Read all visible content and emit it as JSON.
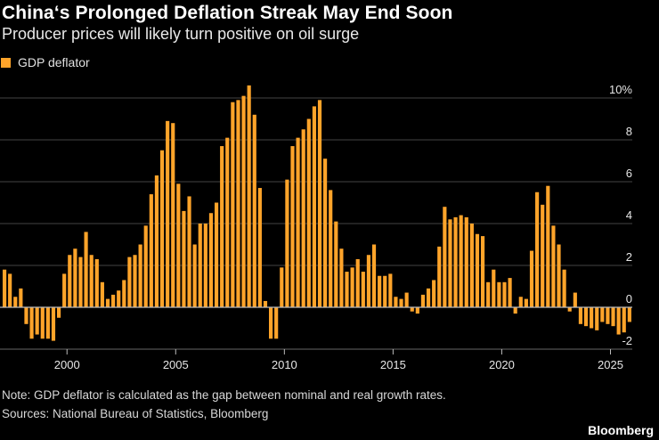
{
  "header": {
    "title": "China‘s Prolonged Deflation Streak May End Soon",
    "subtitle": "Producer prices will likely turn positive on oil surge"
  },
  "footer": {
    "note": "Note: GDP deflator is calculated as the gap between nominal and real growth rates.",
    "sources": "Sources: National Bureau of Statistics, Bloomberg",
    "brand": "Bloomberg"
  },
  "colors": {
    "bar": "#ffa42a",
    "grid": "#444444",
    "zero": "#bbbbbb"
  },
  "chart_data": {
    "type": "bar",
    "title": "China‘s Prolonged Deflation Streak May End Soon",
    "subtitle": "Producer prices will likely turn positive on oil surge",
    "legend": [
      {
        "name": "GDP deflator",
        "color": "#ffa42a"
      }
    ],
    "legend_position": "top-left",
    "xlabel": "",
    "ylabel": "",
    "x_start": 1997.0,
    "x_step": 0.25,
    "xlim": [
      1997,
      2026.25
    ],
    "ylim": [
      -2.4,
      10.8
    ],
    "yticks": [
      -2,
      0,
      2,
      4,
      6,
      8,
      10
    ],
    "ytick_labels": [
      "-2",
      "0",
      "2",
      "4",
      "6",
      "8",
      "10%"
    ],
    "xticks": [
      2000,
      2005,
      2010,
      2015,
      2020,
      2025
    ],
    "xtick_labels": [
      "2000",
      "2005",
      "2010",
      "2015",
      "2020",
      "2025"
    ],
    "grid": true,
    "series": [
      {
        "name": "GDP deflator",
        "values": [
          1.8,
          1.6,
          0.5,
          0.9,
          -0.8,
          -1.5,
          -1.3,
          -1.5,
          -1.5,
          -1.6,
          -0.5,
          1.6,
          2.5,
          2.8,
          2.4,
          3.6,
          2.5,
          2.3,
          1.2,
          0.4,
          0.6,
          0.8,
          1.3,
          2.4,
          2.5,
          3.0,
          3.9,
          5.4,
          6.3,
          7.5,
          8.9,
          8.8,
          5.9,
          4.6,
          5.3,
          3.0,
          4.0,
          4.0,
          4.5,
          5.0,
          7.7,
          8.1,
          9.8,
          9.9,
          10.1,
          10.6,
          9.2,
          5.7,
          0.3,
          -1.5,
          -1.5,
          1.9,
          6.1,
          7.7,
          8.1,
          8.5,
          9.0,
          9.6,
          9.9,
          7.1,
          5.6,
          4.1,
          2.8,
          1.7,
          1.9,
          2.3,
          1.7,
          2.5,
          3.0,
          1.5,
          1.5,
          1.6,
          0.5,
          0.4,
          0.7,
          -0.2,
          -0.3,
          0.6,
          0.9,
          1.3,
          2.9,
          4.8,
          4.2,
          4.3,
          4.4,
          4.3,
          4.0,
          3.5,
          3.4,
          1.2,
          1.8,
          1.2,
          1.2,
          1.4,
          -0.3,
          0.5,
          0.4,
          2.7,
          5.5,
          4.9,
          5.8,
          3.9,
          3.0,
          1.8,
          -0.2,
          0.7,
          -0.8,
          -0.9,
          -1.0,
          -1.1,
          -0.7,
          -0.8,
          -0.9,
          -1.3,
          -1.2,
          -0.7
        ]
      }
    ]
  }
}
